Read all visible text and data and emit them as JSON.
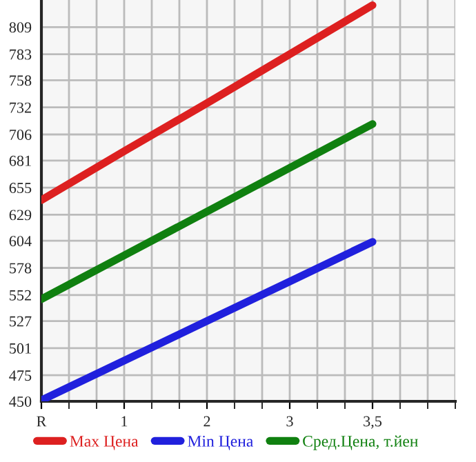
{
  "chart_data": {
    "type": "line",
    "categories": [
      "R",
      "1",
      "2",
      "3",
      "3,5"
    ],
    "series": [
      {
        "name": "Max Цена",
        "color": "#dd2020",
        "values": [
          643,
          690,
          736,
          783,
          830
        ]
      },
      {
        "name": "Min Цена",
        "color": "#2020dd",
        "values": [
          451,
          489,
          527,
          565,
          603
        ]
      },
      {
        "name": "Сред.Цена, т.йен",
        "color": "#108010",
        "values": [
          548,
          590,
          632,
          674,
          716
        ]
      }
    ],
    "ylim": [
      450,
      835
    ],
    "yticks": [
      450,
      475,
      501,
      527,
      552,
      578,
      604,
      629,
      655,
      681,
      706,
      732,
      758,
      783,
      809
    ],
    "grid": true,
    "legend": "bottom",
    "marker": "none",
    "line_style": "solid"
  }
}
